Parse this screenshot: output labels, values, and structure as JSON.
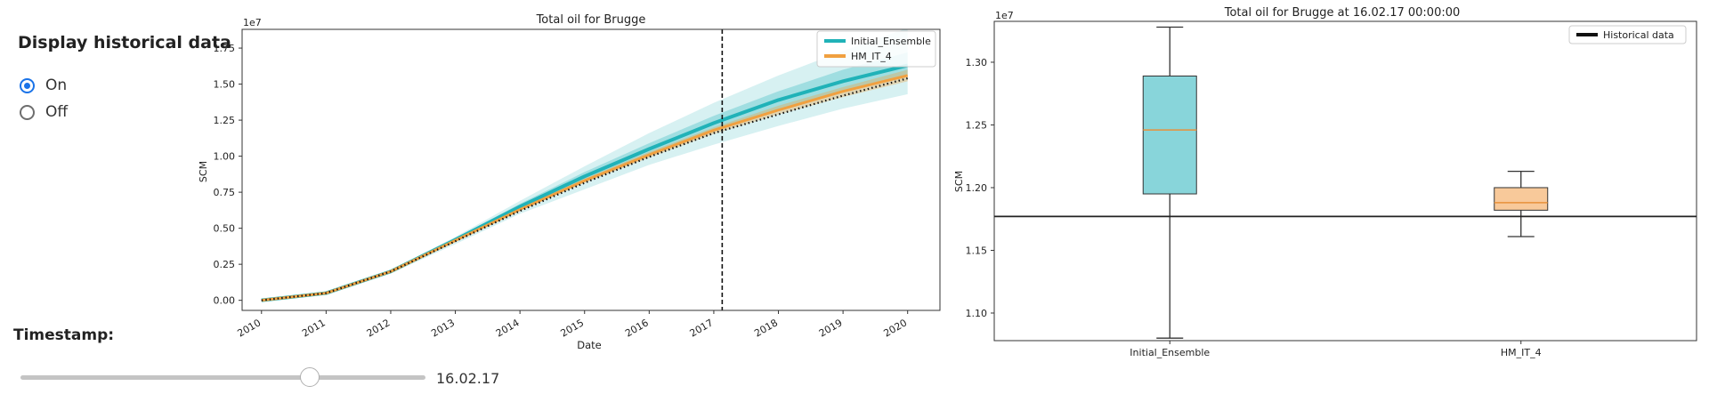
{
  "controls": {
    "historical_title": "Display historical data",
    "options": [
      {
        "label": "On",
        "checked": true
      },
      {
        "label": "Off",
        "checked": false
      }
    ],
    "timestamp_label": "Timestamp:",
    "timestamp_value": "16.02.17",
    "slider_fraction": 0.715
  },
  "chart_data": [
    {
      "type": "line",
      "title": "Total oil for Brugge",
      "xlabel": "Date",
      "ylabel": "SCM",
      "scale_label": "1e7",
      "xlim": [
        2009.7,
        2020.5
      ],
      "ylim": [
        -0.07,
        1.88
      ],
      "x_ticks": [
        2010,
        2011,
        2012,
        2013,
        2014,
        2015,
        2016,
        2017,
        2018,
        2019,
        2020
      ],
      "x_tick_labels": [
        "2010",
        "2011",
        "2012",
        "2013",
        "2014",
        "2015",
        "2016",
        "2017",
        "2018",
        "2019",
        "2020"
      ],
      "y_ticks": [
        0.0,
        0.25,
        0.5,
        0.75,
        1.0,
        1.25,
        1.5,
        1.75
      ],
      "y_tick_labels": [
        "0.00",
        "0.25",
        "0.50",
        "0.75",
        "1.00",
        "1.25",
        "1.50",
        "1.75"
      ],
      "legend_position": "top-right",
      "vline_x": 2017.13,
      "x": [
        2010,
        2011,
        2012,
        2013,
        2014,
        2015,
        2016,
        2017,
        2018,
        2019,
        2020
      ],
      "series": [
        {
          "name": "Initial_Ensemble",
          "color": "#20b2b8",
          "mean": [
            0.0,
            0.05,
            0.2,
            0.42,
            0.65,
            0.86,
            1.05,
            1.23,
            1.39,
            1.52,
            1.63
          ],
          "band_outer_low": [
            0.0,
            0.048,
            0.185,
            0.39,
            0.6,
            0.77,
            0.94,
            1.08,
            1.21,
            1.33,
            1.43
          ],
          "band_outer_high": [
            0.0,
            0.053,
            0.21,
            0.44,
            0.69,
            0.93,
            1.16,
            1.37,
            1.56,
            1.73,
            1.89
          ],
          "band_inner_low": [
            0.0,
            0.049,
            0.195,
            0.405,
            0.63,
            0.83,
            1.01,
            1.17,
            1.32,
            1.45,
            1.56
          ],
          "band_inner_high": [
            0.0,
            0.051,
            0.205,
            0.43,
            0.67,
            0.89,
            1.09,
            1.28,
            1.45,
            1.6,
            1.72
          ]
        },
        {
          "name": "HM_IT_4",
          "color": "#f0a040",
          "mean": [
            0.0,
            0.05,
            0.2,
            0.415,
            0.63,
            0.83,
            1.01,
            1.18,
            1.32,
            1.45,
            1.56
          ],
          "band_outer_low": [
            0.0,
            0.049,
            0.196,
            0.408,
            0.62,
            0.815,
            0.99,
            1.155,
            1.29,
            1.41,
            1.52
          ],
          "band_outer_high": [
            0.0,
            0.051,
            0.204,
            0.422,
            0.64,
            0.845,
            1.03,
            1.2,
            1.35,
            1.48,
            1.6
          ]
        },
        {
          "color": "#111111",
          "style": "dotted",
          "values": [
            0.0,
            0.05,
            0.2,
            0.41,
            0.62,
            0.815,
            0.995,
            1.16,
            1.29,
            1.42,
            1.54
          ]
        }
      ]
    },
    {
      "type": "box",
      "title": "Total oil for Brugge at 16.02.17 00:00:00",
      "xlabel": "",
      "ylabel": "SCM",
      "scale_label": "1e7",
      "ylim": [
        1.078,
        1.3326
      ],
      "y_ticks": [
        1.1,
        1.15,
        1.2,
        1.25,
        1.3
      ],
      "y_tick_labels": [
        "1.10",
        "1.15",
        "1.20",
        "1.25",
        "1.30"
      ],
      "categories": [
        "Initial_Ensemble",
        "HM_IT_4"
      ],
      "boxes": [
        {
          "name": "Initial_Ensemble",
          "color": "#88d5da",
          "min": 1.08,
          "q1": 1.195,
          "median": 1.246,
          "q3": 1.289,
          "max": 1.328
        },
        {
          "name": "HM_IT_4",
          "color": "#f8c99a",
          "min": 1.161,
          "q1": 1.182,
          "median": 1.188,
          "q3": 1.2,
          "max": 1.213
        }
      ],
      "historical_value": 1.177,
      "legend": {
        "label": "Historical data",
        "position": "top-right"
      }
    }
  ]
}
